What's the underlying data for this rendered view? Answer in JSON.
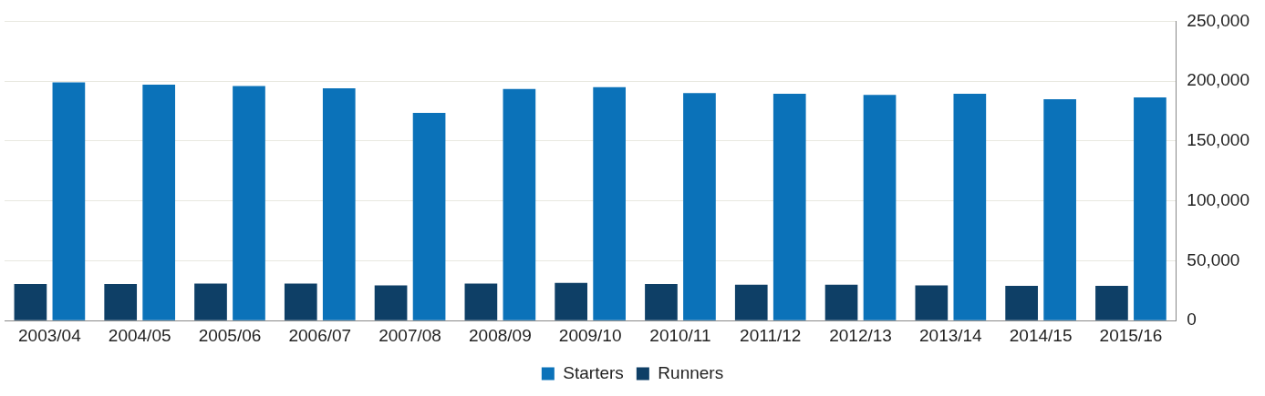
{
  "chart_data": {
    "type": "bar",
    "categories": [
      "2003/04",
      "2004/05",
      "2005/06",
      "2006/07",
      "2007/08",
      "2008/09",
      "2009/10",
      "2010/11",
      "2011/12",
      "2012/13",
      "2013/14",
      "2014/15",
      "2015/16"
    ],
    "series": [
      {
        "name": "Runners",
        "color": "#0e3f66",
        "values": [
          30500,
          30500,
          31000,
          31000,
          29500,
          31000,
          31500,
          30500,
          30000,
          30000,
          29500,
          29000,
          29000
        ]
      },
      {
        "name": "Starters",
        "color": "#0b72b9",
        "values": [
          199000,
          197000,
          196000,
          194000,
          173500,
          193500,
          195000,
          190000,
          189500,
          188500,
          189500,
          185000,
          186500
        ]
      }
    ],
    "ylim": [
      0,
      250000
    ],
    "yticks": [
      0,
      {
        "value": 50000,
        "label": "50,000"
      },
      {
        "value": 100000,
        "label": "100,000"
      },
      {
        "value": 150000,
        "label": "150,000"
      },
      {
        "value": 200000,
        "label": "200,000"
      },
      {
        "value": 250000,
        "label": "250,000"
      }
    ],
    "grid": "y",
    "legend": "bottom"
  }
}
